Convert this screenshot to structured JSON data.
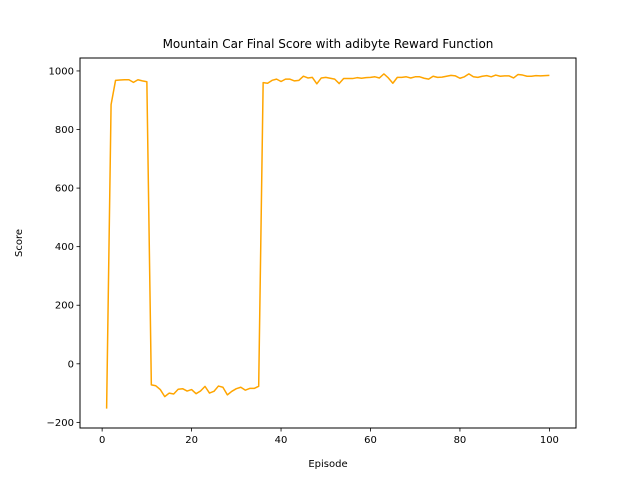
{
  "chart_data": {
    "type": "line",
    "title": "Mountain Car Final Score with adibyte Reward Function",
    "xlabel": "Episode",
    "ylabel": "Score",
    "xlim": [
      -4.95,
      105.95
    ],
    "ylim": [
      -219.2,
      1044.2
    ],
    "grid": false,
    "legend": "none",
    "x_ticks": [
      0,
      20,
      40,
      60,
      80,
      100
    ],
    "y_ticks": [
      -200,
      0,
      200,
      400,
      600,
      800,
      1000
    ],
    "series": [
      {
        "color": "#ffa500",
        "x": [
          1,
          2,
          3,
          4,
          5,
          6,
          7,
          8,
          9,
          10,
          11,
          12,
          13,
          14,
          15,
          16,
          17,
          18,
          19,
          20,
          21,
          22,
          23,
          24,
          25,
          26,
          27,
          28,
          29,
          30,
          31,
          32,
          33,
          34,
          35,
          36,
          37,
          38,
          39,
          40,
          41,
          42,
          43,
          44,
          45,
          46,
          47,
          48,
          49,
          50,
          51,
          52,
          53,
          54,
          55,
          56,
          57,
          58,
          59,
          60,
          61,
          62,
          63,
          64,
          65,
          66,
          67,
          68,
          69,
          70,
          71,
          72,
          73,
          74,
          75,
          76,
          77,
          78,
          79,
          80,
          81,
          82,
          83,
          84,
          85,
          86,
          87,
          88,
          89,
          90,
          91,
          92,
          93,
          94,
          95,
          96,
          97,
          98,
          99,
          100
        ],
        "y": [
          -153,
          885,
          968,
          969,
          970,
          970,
          961,
          970,
          966,
          963,
          -72,
          -75,
          -88,
          -112,
          -100,
          -103,
          -87,
          -85,
          -93,
          -88,
          -102,
          -93,
          -77,
          -100,
          -94,
          -76,
          -80,
          -106,
          -94,
          -85,
          -80,
          -90,
          -84,
          -84,
          -77,
          960,
          958,
          968,
          972,
          964,
          972,
          972,
          966,
          968,
          982,
          976,
          978,
          956,
          976,
          978,
          975,
          972,
          957,
          974,
          974,
          974,
          977,
          975,
          977,
          978,
          980,
          976,
          990,
          976,
          958,
          978,
          978,
          980,
          976,
          980,
          980,
          975,
          972,
          982,
          978,
          979,
          982,
          985,
          983,
          975,
          980,
          990,
          980,
          978,
          982,
          984,
          980,
          986,
          982,
          983,
          983,
          976,
          988,
          986,
          982,
          982,
          984,
          983,
          984,
          985
        ]
      }
    ]
  }
}
